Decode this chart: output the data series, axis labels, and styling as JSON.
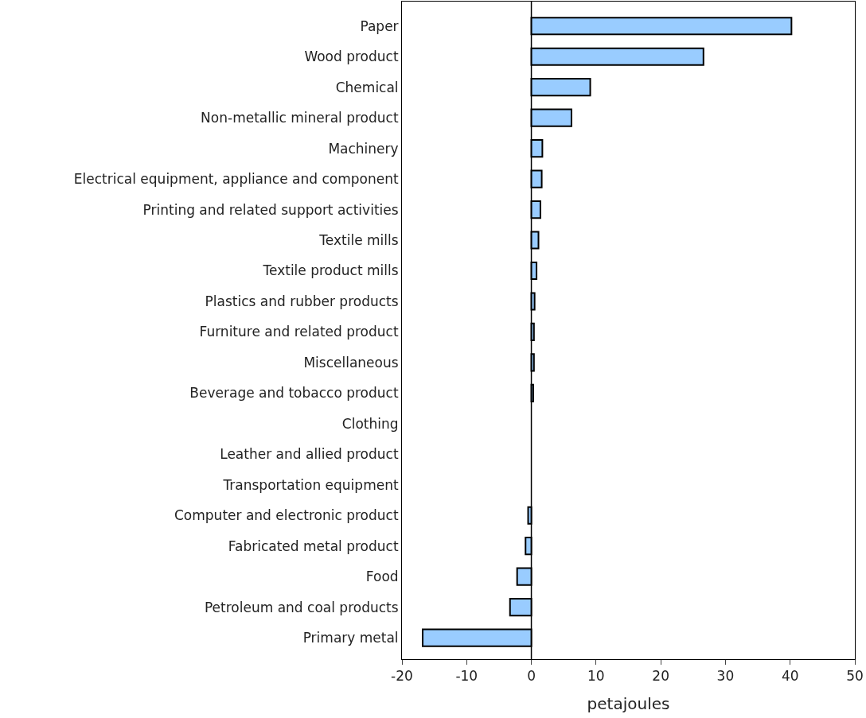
{
  "chart_data": {
    "type": "bar",
    "orientation": "horizontal",
    "xlabel": "petajoules",
    "categories": [
      "Paper",
      "Wood product",
      "Chemical",
      "Non-metallic mineral product",
      "Machinery",
      "Electrical equipment, appliance and component",
      "Printing and related support activities",
      "Textile mills",
      "Textile product mills",
      "Plastics and rubber products",
      "Furniture and related product",
      "Miscellaneous",
      "Beverage and tobacco product",
      "Clothing",
      "Leather and allied product",
      "Transportation equipment",
      "Computer and electronic product",
      "Fabricated metal product",
      "Food",
      "Petroleum and coal products",
      "Primary metal"
    ],
    "values": [
      40.2,
      26.6,
      9.1,
      6.2,
      1.7,
      1.6,
      1.4,
      1.1,
      0.8,
      0.5,
      0.4,
      0.4,
      0.3,
      0.0,
      0.0,
      0.0,
      -0.5,
      -0.9,
      -2.2,
      -3.3,
      -16.8
    ],
    "color": "#99ccff",
    "xlim": [
      -20,
      50
    ],
    "xticks": [
      -20,
      -10,
      0,
      10,
      20,
      30,
      40,
      50
    ],
    "grid": false,
    "legend": false,
    "ref_lines": [
      {
        "axis": "x",
        "value": 0,
        "color": "#000000"
      }
    ]
  }
}
